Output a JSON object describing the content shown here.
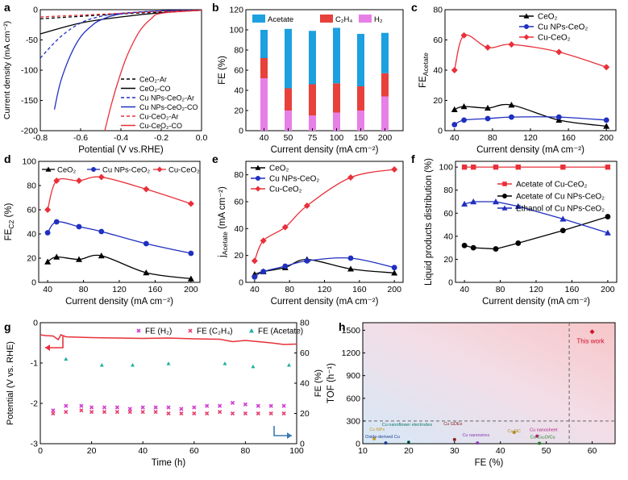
{
  "chart_data": [
    {
      "id": "a",
      "type": "line",
      "panel_label": "a",
      "xlabel": "Potential (V vs.RHE)",
      "ylabel": "Current density (mA cm⁻²)",
      "xlim": [
        -0.8,
        0.0
      ],
      "ylim": [
        -200,
        0
      ],
      "xticks": [
        -0.8,
        -0.6,
        -0.4,
        -0.2,
        0.0
      ],
      "xticklabels": [
        "-0.8",
        "-0.6",
        "-0.4",
        "-0.2",
        "0.0"
      ],
      "yticks": [
        -200,
        -150,
        -100,
        -50,
        0
      ],
      "yticklabels": [
        "-200",
        "-150",
        "-100",
        "-50",
        "0"
      ],
      "legend_position": "bottom-right",
      "series": [
        {
          "name": "CeO₂-Ar",
          "color": "#000000",
          "dash": "4,3",
          "x": [
            -0.8,
            -0.6,
            -0.4,
            -0.2,
            0.0
          ],
          "values": [
            -15,
            -11,
            -7,
            -4,
            -1
          ]
        },
        {
          "name": "CeO₂-CO",
          "color": "#000000",
          "dash": "",
          "x": [
            -0.8,
            -0.6,
            -0.4,
            -0.2,
            0.0
          ],
          "values": [
            -40,
            -22,
            -12,
            -5,
            -1
          ]
        },
        {
          "name": "Cu NPs-CeO₂-Ar",
          "color": "#1f2fbf",
          "dash": "4,3",
          "x": [
            -0.8,
            -0.7,
            -0.6,
            -0.5,
            -0.4,
            -0.2,
            0.0
          ],
          "values": [
            -80,
            -45,
            -22,
            -11,
            -6,
            -2,
            -1
          ]
        },
        {
          "name": "Cu NPs-CeO₂-CO",
          "color": "#1f2fbf",
          "dash": "",
          "x": [
            -0.73,
            -0.7,
            -0.65,
            -0.6,
            -0.55,
            -0.5,
            -0.4,
            -0.2,
            0.0
          ],
          "values": [
            -165,
            -120,
            -75,
            -45,
            -28,
            -17,
            -7,
            -2,
            -1
          ]
        },
        {
          "name": "Cu-CeO₂-Ar",
          "color": "#e8303a",
          "dash": "4,3",
          "x": [
            -0.8,
            -0.6,
            -0.4,
            -0.2,
            0.0
          ],
          "values": [
            -12,
            -9,
            -6,
            -3,
            -1
          ]
        },
        {
          "name": "Cu-CeO₂-CO",
          "color": "#e8303a",
          "dash": "",
          "x": [
            -0.48,
            -0.45,
            -0.42,
            -0.38,
            -0.34,
            -0.3,
            -0.25,
            -0.2,
            0.0
          ],
          "values": [
            -200,
            -160,
            -125,
            -85,
            -55,
            -32,
            -15,
            -6,
            -1
          ]
        }
      ]
    },
    {
      "id": "b",
      "type": "bar",
      "stacked": true,
      "panel_label": "b",
      "xlabel": "Current density (mA cm⁻²)",
      "ylabel": "FE (%)",
      "categories": [
        "40",
        "50",
        "75",
        "100",
        "150",
        "200"
      ],
      "ylim": [
        0,
        120
      ],
      "yticks": [
        0,
        20,
        40,
        60,
        80,
        100,
        120
      ],
      "yticklabels": [
        "0",
        "20",
        "40",
        "60",
        "80",
        "100",
        "120"
      ],
      "legend_position": "top",
      "series": [
        {
          "name": "H₂",
          "color": "#e680e6",
          "values": [
            52,
            20,
            15,
            18,
            20,
            34
          ]
        },
        {
          "name": "C₂H₄",
          "color": "#e8403a",
          "values": [
            20,
            22,
            31,
            29,
            24,
            23
          ]
        },
        {
          "name": "Acetate",
          "color": "#1ca0e0",
          "values": [
            28,
            59,
            53,
            55,
            52,
            40
          ]
        }
      ]
    },
    {
      "id": "c",
      "type": "line",
      "panel_label": "c",
      "xlabel": "Current density (mA cm⁻²)",
      "ylabel": "FE",
      "ylabel_sub": "Acetate",
      "xlim": [
        30,
        210
      ],
      "ylim": [
        0,
        80
      ],
      "xticks": [
        40,
        80,
        120,
        160,
        200
      ],
      "xticklabels": [
        "40",
        "80",
        "120",
        "160",
        "200"
      ],
      "yticks": [
        0,
        20,
        40,
        60,
        80
      ],
      "yticklabels": [
        "0",
        "20",
        "40",
        "60",
        "80"
      ],
      "legend_position": "top-right",
      "series": [
        {
          "name": "CeO₂",
          "color": "#000000",
          "marker": "triangle",
          "x": [
            40,
            50,
            75,
            100,
            150,
            200
          ],
          "values": [
            14,
            16,
            15,
            17,
            7,
            3
          ]
        },
        {
          "name": "Cu NPs-CeO₂",
          "color": "#1f2fbf",
          "marker": "circle",
          "x": [
            40,
            50,
            75,
            100,
            150,
            200
          ],
          "values": [
            4,
            7,
            8,
            9,
            9,
            7
          ]
        },
        {
          "name": "Cu-CeO₂",
          "color": "#e8303a",
          "marker": "diamond",
          "x": [
            40,
            50,
            75,
            100,
            150,
            200
          ],
          "values": [
            40,
            63,
            55,
            57,
            52,
            42
          ]
        }
      ]
    },
    {
      "id": "d",
      "type": "line",
      "panel_label": "d",
      "xlabel": "Current density (mA cm⁻²)",
      "ylabel": "FE",
      "ylabel_sub": "C2",
      "ylabel_unit": "(%)",
      "xlim": [
        30,
        210
      ],
      "ylim": [
        0,
        100
      ],
      "xticks": [
        40,
        80,
        120,
        160,
        200
      ],
      "xticklabels": [
        "40",
        "80",
        "120",
        "160",
        "200"
      ],
      "yticks": [
        0,
        20,
        40,
        60,
        80,
        100
      ],
      "yticklabels": [
        "0",
        "20",
        "40",
        "60",
        "80",
        "100"
      ],
      "legend_position": "top",
      "series": [
        {
          "name": "CeO₂",
          "color": "#000000",
          "marker": "triangle",
          "x": [
            40,
            50,
            75,
            100,
            150,
            200
          ],
          "values": [
            17,
            21,
            19,
            22,
            8,
            3
          ]
        },
        {
          "name": "Cu NPs-CeO₂",
          "color": "#1f2fbf",
          "marker": "circle",
          "x": [
            40,
            50,
            75,
            100,
            150,
            200
          ],
          "values": [
            41,
            50,
            46,
            42,
            32,
            24
          ]
        },
        {
          "name": "Cu-CeO₂",
          "color": "#e8303a",
          "marker": "diamond",
          "x": [
            40,
            50,
            75,
            100,
            150,
            200
          ],
          "values": [
            60,
            84,
            84,
            87,
            77,
            65
          ]
        }
      ]
    },
    {
      "id": "e",
      "type": "line",
      "panel_label": "e",
      "xlabel": "Current density (mA cm⁻²)",
      "ylabel": "j",
      "ylabel_sub": "Acetate",
      "ylabel_unit": "(mA cm⁻²)",
      "xlim": [
        30,
        210
      ],
      "ylim": [
        0,
        90
      ],
      "xticks": [
        40,
        80,
        120,
        160,
        200
      ],
      "xticklabels": [
        "40",
        "80",
        "120",
        "160",
        "200"
      ],
      "yticks": [
        0,
        20,
        40,
        60,
        80
      ],
      "yticklabels": [
        "0",
        "20",
        "40",
        "60",
        "80"
      ],
      "legend_position": "top-left",
      "series": [
        {
          "name": "CeO₂",
          "color": "#000000",
          "marker": "triangle",
          "x": [
            40,
            50,
            75,
            100,
            150,
            200
          ],
          "values": [
            6,
            8,
            11,
            17,
            10,
            7
          ]
        },
        {
          "name": "Cu NPs-CeO₂",
          "color": "#1f2fbf",
          "marker": "circle",
          "x": [
            40,
            50,
            75,
            100,
            150,
            200
          ],
          "values": [
            4,
            8,
            12,
            16,
            18,
            11
          ]
        },
        {
          "name": "Cu-CeO₂",
          "color": "#e8303a",
          "marker": "diamond",
          "x": [
            40,
            50,
            75,
            100,
            150,
            200
          ],
          "values": [
            16,
            31,
            41,
            57,
            78,
            84
          ]
        }
      ]
    },
    {
      "id": "f",
      "type": "line",
      "panel_label": "f",
      "xlabel": "Current density (mA cm⁻²)",
      "ylabel": "Liquid products distribution (%)",
      "xlim": [
        30,
        210
      ],
      "ylim": [
        0,
        105
      ],
      "xticks": [
        40,
        80,
        120,
        160,
        200
      ],
      "xticklabels": [
        "40",
        "80",
        "120",
        "160",
        "200"
      ],
      "yticks": [
        0,
        20,
        40,
        60,
        80,
        100
      ],
      "yticklabels": [
        "0",
        "20",
        "40",
        "60",
        "80",
        "100"
      ],
      "legend_position": "right",
      "series": [
        {
          "name": "Acetate of Cu-CeO₂",
          "color": "#e8303a",
          "marker": "square",
          "x": [
            40,
            50,
            75,
            100,
            150,
            200
          ],
          "values": [
            100,
            100,
            100,
            100,
            100,
            100
          ]
        },
        {
          "name": "Acetate of Cu NPs-CeO₂",
          "color": "#000000",
          "marker": "circle",
          "x": [
            40,
            50,
            75,
            100,
            150,
            200
          ],
          "values": [
            32,
            30,
            29,
            34,
            45,
            57
          ]
        },
        {
          "name": "Ethanol of Cu NPs-CeO₂",
          "color": "#1f2fbf",
          "marker": "triangle",
          "x": [
            40,
            50,
            75,
            100,
            150,
            200
          ],
          "values": [
            68,
            70,
            70,
            66,
            55,
            43
          ]
        }
      ]
    },
    {
      "id": "g",
      "type": "scatter",
      "panel_label": "g",
      "xlabel": "Time (h)",
      "ylabel": "Potential (V vs. RHE)",
      "y2label": "FE (%)",
      "xlim": [
        0,
        100
      ],
      "ylim": [
        -3,
        0
      ],
      "y2lim": [
        0,
        80
      ],
      "xticks": [
        0,
        20,
        40,
        60,
        80,
        100
      ],
      "xticklabels": [
        "0",
        "20",
        "40",
        "60",
        "80",
        "100"
      ],
      "yticks": [
        -3,
        -2,
        -1,
        0
      ],
      "yticklabels": [
        "-3",
        "-2",
        "-1",
        "0"
      ],
      "y2ticks": [
        0,
        20,
        40,
        60,
        80
      ],
      "y2ticklabels": [
        "0",
        "20",
        "40",
        "60",
        "80"
      ],
      "legend_position": "top",
      "potential": {
        "name": "Potential",
        "color": "#e8303a",
        "x": [
          0,
          2,
          5,
          7,
          8,
          10,
          20,
          30,
          40,
          50,
          60,
          70,
          75,
          80,
          85,
          90,
          95,
          100
        ],
        "values": [
          -0.3,
          -0.32,
          -0.33,
          -0.42,
          -0.3,
          -0.35,
          -0.37,
          -0.38,
          -0.39,
          -0.38,
          -0.4,
          -0.41,
          -0.47,
          -0.44,
          -0.47,
          -0.5,
          -0.54,
          -0.53
        ]
      },
      "series": [
        {
          "name": "FE (H₂)",
          "color": "#d23cd2",
          "marker": "x",
          "axis": "y2",
          "x": [
            5,
            10,
            16,
            20,
            25,
            30,
            35,
            40,
            45,
            50,
            55,
            60,
            65,
            70,
            75,
            80,
            85,
            90,
            95
          ],
          "values": [
            22,
            25,
            25,
            24,
            24,
            24,
            23,
            24,
            24,
            24,
            23,
            24,
            25,
            25,
            27,
            26,
            25,
            25,
            25
          ]
        },
        {
          "name": "FE (C₂H₄)",
          "color": "#e84070",
          "marker": "x",
          "axis": "y2",
          "x": [
            5,
            10,
            16,
            20,
            25,
            30,
            35,
            40,
            45,
            50,
            55,
            60,
            65,
            70,
            75,
            80,
            85,
            90,
            95
          ],
          "values": [
            20,
            21,
            22,
            21,
            21,
            21,
            21,
            21,
            21,
            20,
            20,
            20,
            20,
            21,
            20,
            20,
            20,
            20,
            20
          ]
        },
        {
          "name": "FE (Acetate)",
          "color": "#20b0a0",
          "marker": "triangle",
          "axis": "y2",
          "x": [
            10,
            24,
            36,
            50,
            72,
            83,
            97
          ],
          "values": [
            56,
            52,
            52,
            53,
            53,
            51,
            52
          ]
        }
      ]
    },
    {
      "id": "h",
      "type": "scatter",
      "panel_label": "h",
      "xlabel": "FE (%)",
      "ylabel": "TOF (h⁻¹)",
      "xlim": [
        10,
        65
      ],
      "ylim": [
        0,
        1600
      ],
      "xticks": [
        10,
        20,
        30,
        40,
        50,
        60
      ],
      "xticklabels": [
        "10",
        "20",
        "30",
        "40",
        "50",
        "60"
      ],
      "yticks": [
        0,
        300,
        600,
        900,
        1200,
        1500
      ],
      "yticklabels": [
        "0",
        "300",
        "600",
        "900",
        "1200",
        "1500"
      ],
      "dashed_lines": {
        "x": 55,
        "y": 300
      },
      "points": [
        {
          "label": "This work",
          "x": 60,
          "y": 1480,
          "color": "#d0102a"
        },
        {
          "label": "Cu NPs",
          "x": 12.5,
          "y": 65,
          "color": "#c89a20"
        },
        {
          "label": "Oxide-derived Cu",
          "x": 15,
          "y": 10,
          "color": "#1e3c8c"
        },
        {
          "label": "Cu nanoflower electrodes",
          "x": 20,
          "y": 20,
          "color": "#0a7a6a"
        },
        {
          "label": "Cu GDEs",
          "x": 30,
          "y": 55,
          "color": "#8a2020"
        },
        {
          "label": "Cu nanowires",
          "x": 35,
          "y": 10,
          "color": "#8a3ab0"
        },
        {
          "label": "Cu NC",
          "x": 43,
          "y": 150,
          "color": "#b08a20"
        },
        {
          "label": "Cu nanosheet",
          "x": 48,
          "y": 100,
          "color": "#b02080"
        },
        {
          "label": "Cu-Cu₂O/Cu",
          "x": 48.5,
          "y": 5,
          "color": "#207a20"
        }
      ]
    }
  ]
}
